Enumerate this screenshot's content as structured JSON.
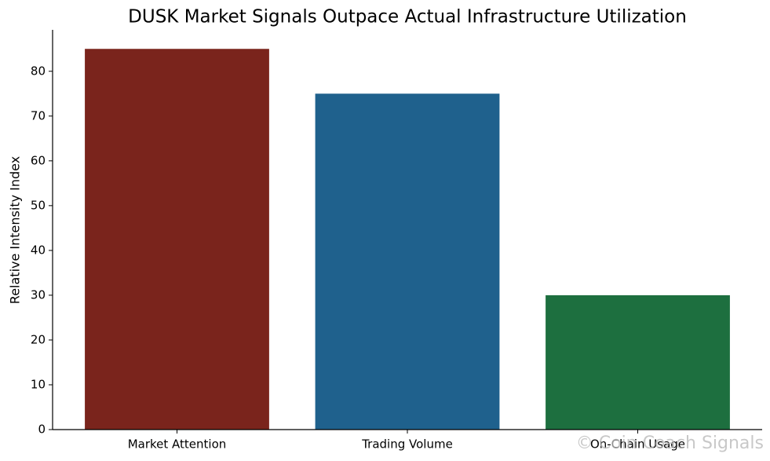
{
  "chart_data": {
    "type": "bar",
    "title": "DUSK Market Signals Outpace Actual Infrastructure Utilization",
    "y_label": "Relative Intensity Index",
    "categories": [
      "Market Attention",
      "Trading Volume",
      "On-Chain Usage"
    ],
    "values": [
      85,
      75,
      30
    ],
    "colors": [
      "#7a241c",
      "#1f618d",
      "#1d6f3f"
    ],
    "ylim": [
      0,
      89.25
    ],
    "yticks": [
      0,
      10,
      20,
      30,
      40,
      50,
      60,
      70,
      80
    ],
    "grid": false,
    "watermark": "© Coin Coach Signals"
  }
}
